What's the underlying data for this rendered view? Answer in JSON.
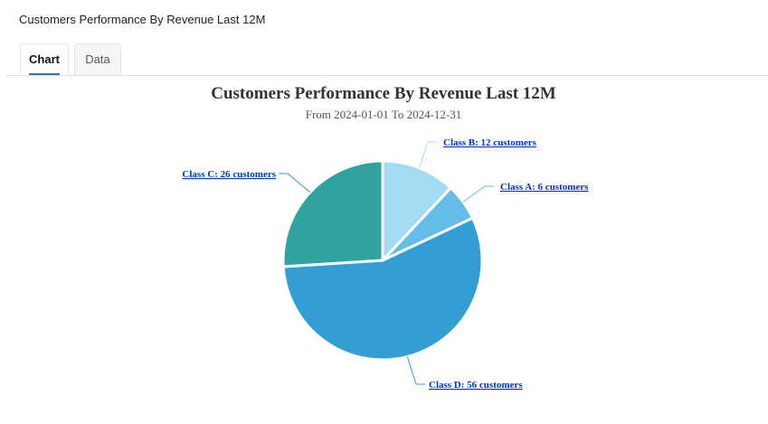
{
  "header": {
    "title": "Customers Performance By Revenue Last 12M"
  },
  "tabs": [
    {
      "label": "Chart",
      "active": true
    },
    {
      "label": "Data",
      "active": false
    }
  ],
  "chart_data": {
    "type": "pie",
    "title": "Customers Performance By Revenue Last 12M",
    "subtitle": "From 2024-01-01 To 2024-12-31",
    "slices": [
      {
        "name": "Class B",
        "value": 12,
        "label": "Class B: 12 customers",
        "color": "#a3dbf3"
      },
      {
        "name": "Class A",
        "value": 6,
        "label": "Class A: 6 customers",
        "color": "#63bde6"
      },
      {
        "name": "Class D",
        "value": 56,
        "label": "Class D: 56 customers",
        "color": "#339ed4"
      },
      {
        "name": "Class C",
        "value": 26,
        "label": "Class C: 26 customers",
        "color": "#2ea39f"
      }
    ],
    "label_color": "#0033cc"
  }
}
